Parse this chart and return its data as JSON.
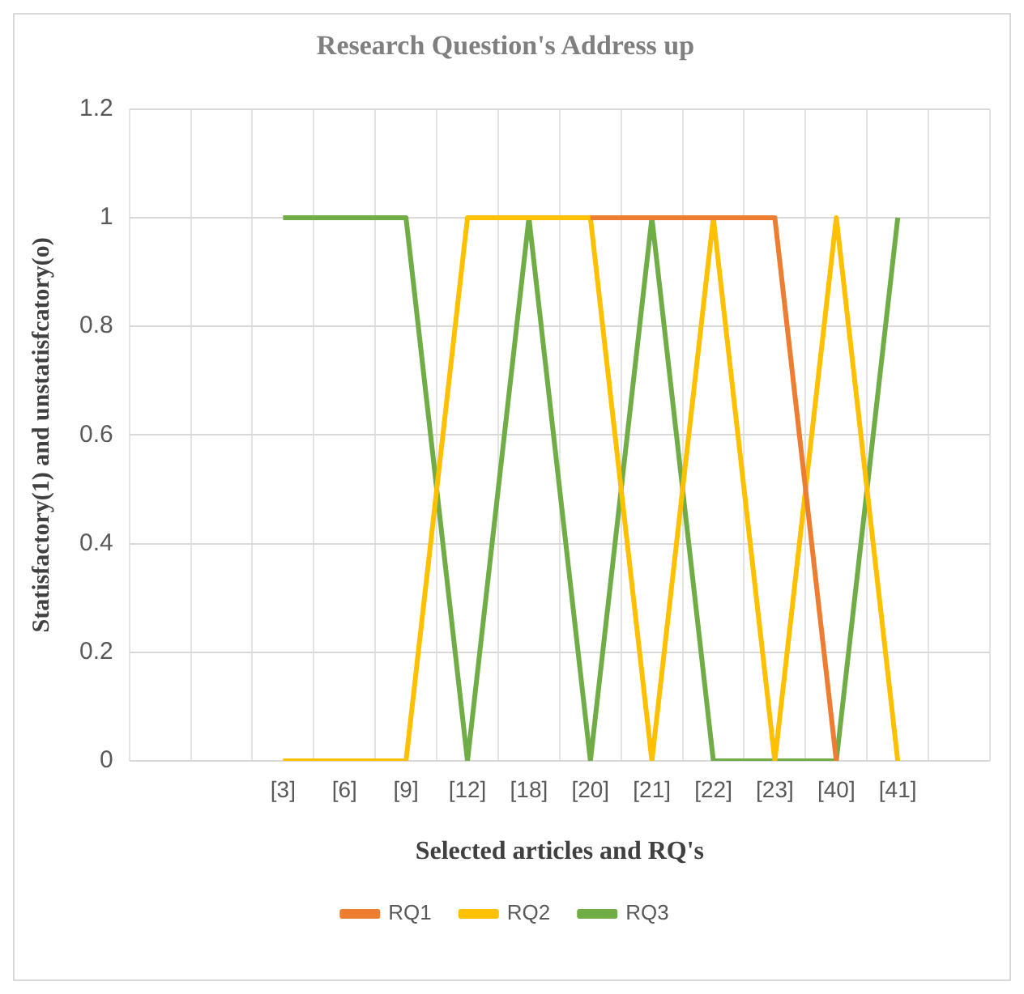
{
  "chart_data": {
    "type": "line",
    "title": "Research Question's Address up",
    "xlabel": "Selected articles and RQ's",
    "ylabel": "Statisfactory(1) and unstatisfcatory(o)",
    "categories": [
      null,
      null,
      "[3]",
      "[6]",
      "[9]",
      "[12]",
      "[18]",
      "[20]",
      "[21]",
      "[22]",
      "[23]",
      "[40]",
      "[41]",
      null
    ],
    "series": [
      {
        "name": "RQ1",
        "color": "#ed7d31",
        "values": [
          null,
          null,
          null,
          null,
          null,
          null,
          null,
          1,
          1,
          1,
          1,
          0,
          null,
          null
        ]
      },
      {
        "name": "RQ2",
        "color": "#ffc000",
        "values": [
          null,
          null,
          0,
          0,
          0,
          1,
          1,
          1,
          0,
          1,
          0,
          1,
          0,
          null
        ]
      },
      {
        "name": "RQ3",
        "color": "#70ad47",
        "values": [
          null,
          null,
          1,
          1,
          1,
          0,
          1,
          0,
          1,
          0,
          0,
          0,
          1,
          null
        ]
      }
    ],
    "ylim": [
      0,
      1.2
    ],
    "yticks": [
      0,
      0.2,
      0.4,
      0.6,
      0.8,
      1,
      1.2
    ],
    "grid": true,
    "legend": "bottom",
    "marker": "none",
    "line_style": "solid"
  }
}
